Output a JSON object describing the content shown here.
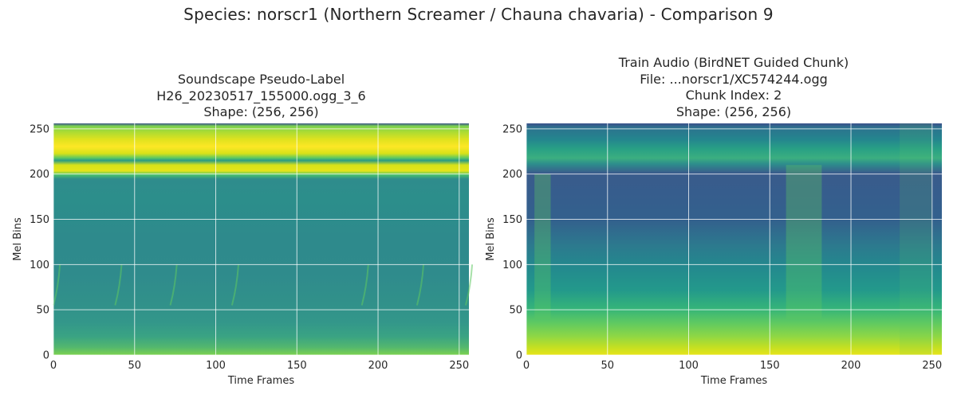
{
  "figure": {
    "suptitle": "Species: norscr1 (Northern Screamer / Chauna chavaria) - Comparison 9",
    "colormap": "viridis",
    "grid": true,
    "colors": {
      "low": "#440154",
      "mid_low": "#31688e",
      "mid": "#21918c",
      "mid_high": "#5ec962",
      "high": "#fde725",
      "grid": "#ffffff",
      "axes_edge": "#ffffff",
      "text": "#262626"
    }
  },
  "chart_data": [
    {
      "type": "heatmap",
      "title_lines": [
        "Soundscape Pseudo-Label",
        "H26_20230517_155000.ogg_3_6",
        "Shape: (256, 256)"
      ],
      "xlabel": "Time Frames",
      "ylabel": "Mel Bins",
      "xlim": [
        0,
        256
      ],
      "ylim": [
        0,
        256
      ],
      "xticks": [
        0,
        50,
        100,
        150,
        200,
        250
      ],
      "yticks": [
        0,
        50,
        100,
        150,
        200,
        250
      ],
      "shape": [
        256,
        256
      ]
    },
    {
      "type": "heatmap",
      "title_lines": [
        "Train Audio (BirdNET Guided Chunk)",
        "File: ...norscr1/XC574244.ogg",
        "Chunk Index: 2",
        "Shape: (256, 256)"
      ],
      "xlabel": "Time Frames",
      "ylabel": "Mel Bins",
      "xlim": [
        0,
        256
      ],
      "ylim": [
        0,
        256
      ],
      "xticks": [
        0,
        50,
        100,
        150,
        200,
        250
      ],
      "yticks": [
        0,
        50,
        100,
        150,
        200,
        250
      ],
      "shape": [
        256,
        256
      ]
    }
  ]
}
